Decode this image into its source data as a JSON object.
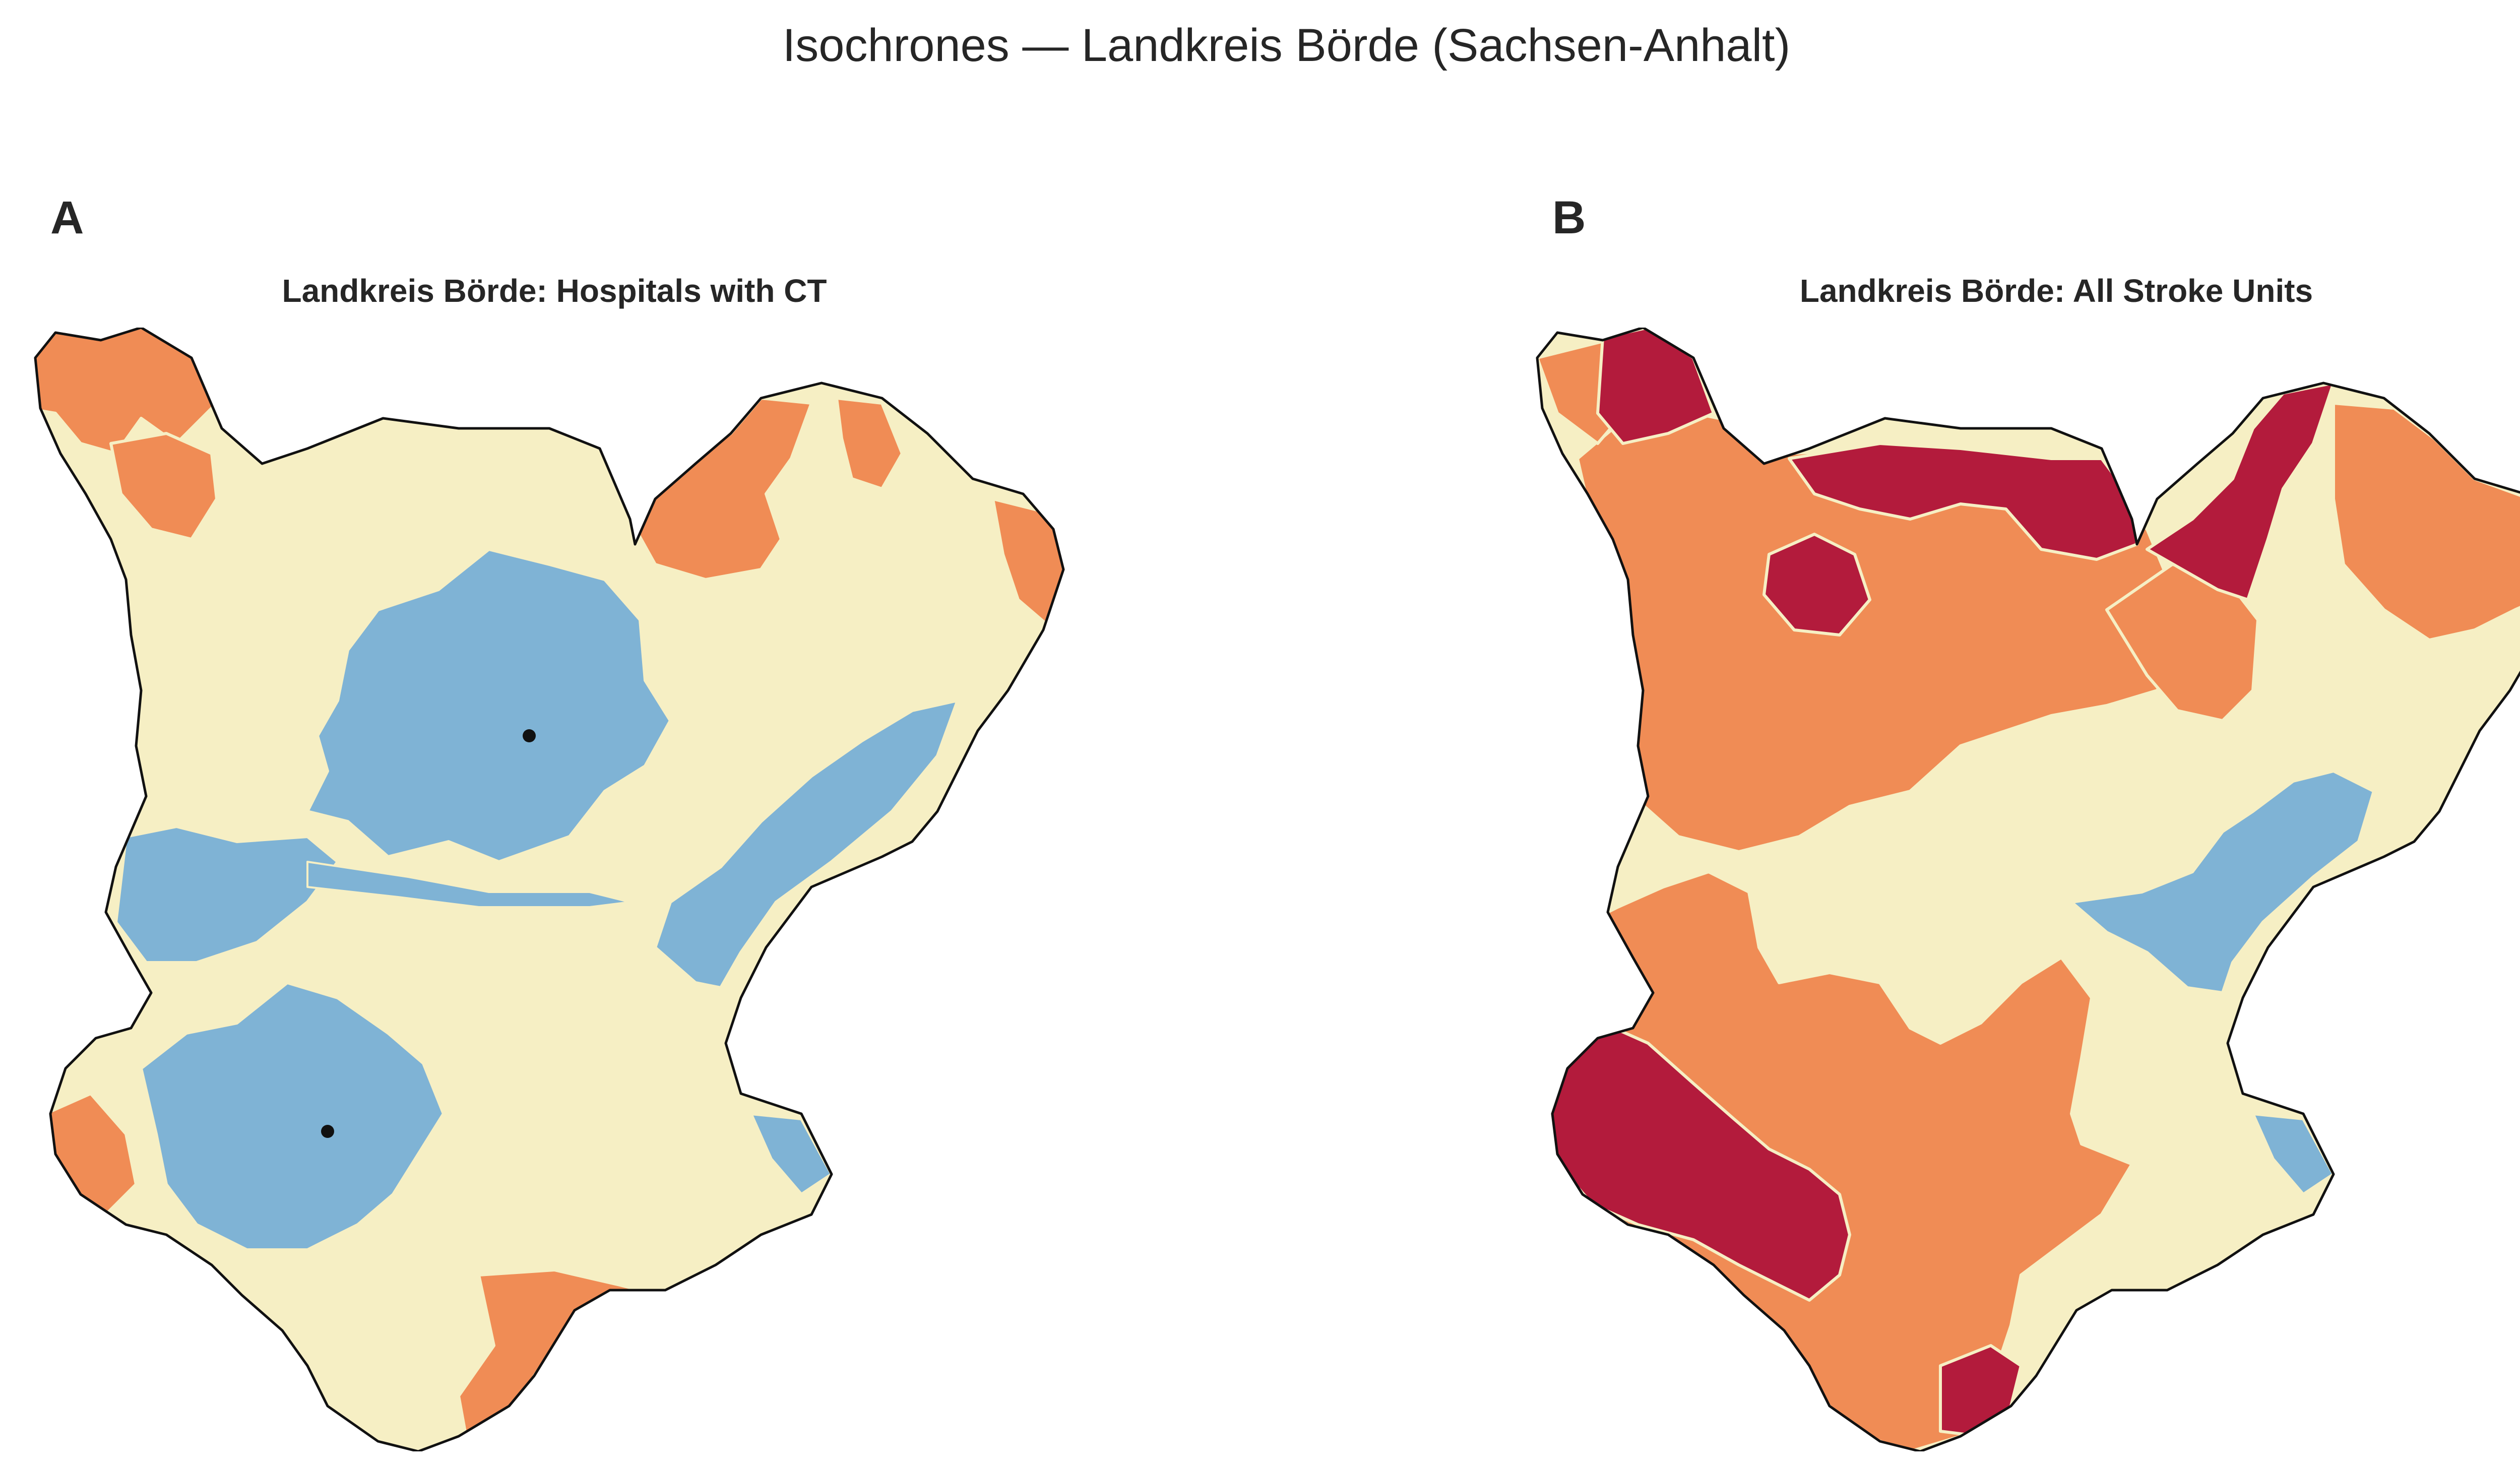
{
  "figure": {
    "title": "Isochrones — Landkreis Börde (Sachsen-Anhalt)"
  },
  "colors": {
    "zone_near": "#7fb3d5",
    "zone_mid": "#f6efc4",
    "zone_far": "#f08c55",
    "zone_farthest": "#b31b3c",
    "border": "#111111",
    "site_marker": "#111111"
  },
  "panels": [
    {
      "letter": "A",
      "title": "Landkreis Börde: Hospitals with CT",
      "site_markers": 2,
      "zones_shown": [
        "zone_near",
        "zone_mid",
        "zone_far"
      ]
    },
    {
      "letter": "B",
      "title": "Landkreis Börde: All Stroke Units",
      "site_markers": 0,
      "zones_shown": [
        "zone_near",
        "zone_mid",
        "zone_far",
        "zone_farthest"
      ]
    }
  ]
}
